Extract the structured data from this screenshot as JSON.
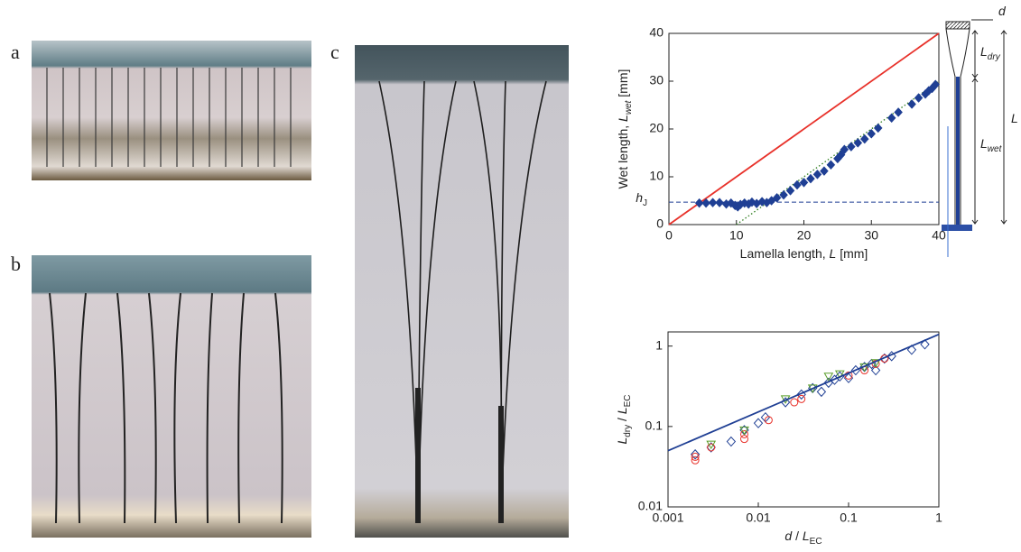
{
  "panels": {
    "a": "a",
    "b": "b",
    "c": "c"
  },
  "schematic": {
    "d": [
      {
        "text": "d",
        "style": "italic"
      }
    ],
    "l_dry": [
      {
        "text": "L",
        "style": "italic"
      },
      {
        "text": "dry",
        "style": "italic-sub"
      }
    ],
    "l": [
      {
        "text": "L",
        "style": "italic"
      }
    ],
    "l_wet": [
      {
        "text": "L",
        "style": "italic"
      },
      {
        "text": "wet",
        "style": "italic-sub"
      }
    ]
  },
  "chart_data": [
    {
      "type": "scatter",
      "xlabel": [
        {
          "text": "Lamella length, ",
          "style": "plain"
        },
        {
          "text": "L",
          "style": "italic"
        },
        {
          "text": " [mm]",
          "style": "plain"
        }
      ],
      "ylabel": [
        {
          "text": "Wet length, ",
          "style": "plain"
        },
        {
          "text": "L",
          "style": "italic"
        },
        {
          "text": "wet",
          "style": "italic-sub"
        },
        {
          "text": " [mm]",
          "style": "plain"
        }
      ],
      "xlim": [
        0,
        40
      ],
      "ylim": [
        0,
        40
      ],
      "xticks": [
        0,
        10,
        20,
        30,
        40
      ],
      "yticks": [
        0,
        10,
        20,
        30,
        40
      ],
      "hlines": [
        {
          "value": 4.7,
          "color": "#1f3f94",
          "style": "dashed",
          "label": [
            {
              "text": "h",
              "style": "italic"
            },
            {
              "text": "J",
              "style": "sub"
            }
          ]
        }
      ],
      "series": [
        {
          "color": "#e8312a",
          "style": "solid",
          "x": [
            0,
            40
          ],
          "values": [
            0,
            40
          ]
        },
        {
          "color": "#2e7d1e",
          "style": "dotted",
          "x": [
            10,
            40
          ],
          "values": [
            0,
            30
          ]
        },
        {
          "color": "#1f3f94",
          "marker": "diamond",
          "x": [
            4.5,
            5.5,
            6.5,
            7.5,
            8.5,
            9.2,
            9.8,
            10.2,
            10.6,
            11.2,
            11.8,
            12.3,
            13,
            13.8,
            14.5,
            15.2,
            16,
            17,
            18,
            19,
            20,
            21,
            22,
            23,
            24,
            25,
            25.5,
            26,
            27,
            28,
            29,
            30,
            31,
            33,
            34,
            36,
            37,
            38,
            38.5,
            39,
            39.5
          ],
          "values": [
            4.5,
            4.5,
            4.6,
            4.6,
            4.3,
            4.5,
            4.0,
            3.7,
            4.2,
            4.5,
            4.3,
            4.7,
            4.4,
            4.8,
            4.6,
            5.0,
            5.6,
            6.2,
            7.1,
            8.3,
            8.8,
            9.6,
            10.5,
            11.2,
            12.5,
            13.8,
            14.6,
            15.7,
            16.3,
            17.1,
            17.9,
            19.0,
            20.2,
            22.3,
            23.5,
            25.2,
            26.5,
            27.3,
            28.0,
            28.5,
            29.3
          ]
        }
      ]
    },
    {
      "type": "scatter",
      "xscale": "log",
      "yscale": "log",
      "xlabel": [
        {
          "text": "d",
          "style": "italic"
        },
        {
          "text": " / ",
          "style": "plain"
        },
        {
          "text": "L",
          "style": "italic"
        },
        {
          "text": "EC",
          "style": "sub"
        }
      ],
      "ylabel": [
        {
          "text": "L",
          "style": "italic"
        },
        {
          "text": "dry",
          "style": "sub"
        },
        {
          "text": " / ",
          "style": "plain"
        },
        {
          "text": "L",
          "style": "italic"
        },
        {
          "text": "EC",
          "style": "sub"
        }
      ],
      "xlim": [
        0.001,
        1
      ],
      "ylim": [
        0.01,
        1.5
      ],
      "xticks": [
        0.001,
        0.01,
        0.1,
        1
      ],
      "yticks": [
        0.01,
        0.1,
        1
      ],
      "series": [
        {
          "color": "#1f3f94",
          "marker": "diamond-open",
          "x": [
            0.002,
            0.003,
            0.005,
            0.007,
            0.01,
            0.012,
            0.02,
            0.03,
            0.04,
            0.05,
            0.06,
            0.07,
            0.08,
            0.1,
            0.12,
            0.15,
            0.18,
            0.2,
            0.25,
            0.3,
            0.5,
            0.7
          ],
          "values": [
            0.045,
            0.055,
            0.065,
            0.09,
            0.11,
            0.13,
            0.2,
            0.25,
            0.3,
            0.27,
            0.35,
            0.38,
            0.42,
            0.4,
            0.5,
            0.55,
            0.6,
            0.5,
            0.7,
            0.75,
            0.9,
            1.05
          ]
        },
        {
          "color": "#e8312a",
          "marker": "circle-open",
          "x": [
            0.002,
            0.002,
            0.003,
            0.007,
            0.007,
            0.013,
            0.025,
            0.03,
            0.1,
            0.15,
            0.2,
            0.25
          ],
          "values": [
            0.038,
            0.042,
            0.055,
            0.07,
            0.08,
            0.12,
            0.2,
            0.22,
            0.43,
            0.5,
            0.6,
            0.7
          ]
        },
        {
          "color": "#5a9e2a",
          "marker": "triangle-open",
          "x": [
            0.003,
            0.007,
            0.02,
            0.04,
            0.06,
            0.08,
            0.15,
            0.2
          ],
          "values": [
            0.06,
            0.09,
            0.22,
            0.3,
            0.42,
            0.45,
            0.55,
            0.62
          ]
        },
        {
          "color": "#1f3f94",
          "style": "solid",
          "x": [
            0.001,
            1
          ],
          "values": [
            0.05,
            1.4
          ]
        }
      ]
    }
  ]
}
